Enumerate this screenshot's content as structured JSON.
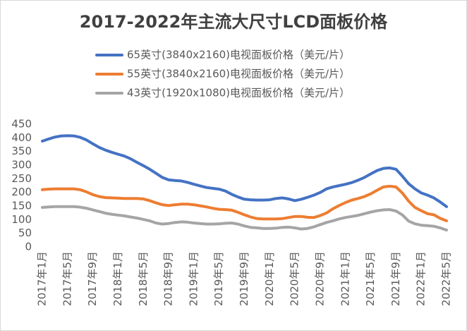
{
  "chart_data": {
    "type": "line",
    "title": "2017-2022年主流大尺寸LCD面板价格",
    "categories": [
      "2017年1月",
      null,
      null,
      null,
      "2017年5月",
      null,
      null,
      null,
      "2017年9月",
      null,
      null,
      null,
      "2018年1月",
      null,
      null,
      null,
      "2018年5月",
      null,
      null,
      null,
      "2018年9月",
      null,
      null,
      null,
      "2019年1月",
      null,
      null,
      null,
      "2019年5月",
      null,
      null,
      null,
      "2019年9月",
      null,
      null,
      null,
      "2020年1月",
      null,
      null,
      null,
      "2020年5月",
      null,
      null,
      null,
      "2020年9月",
      null,
      null,
      null,
      "2021年1月",
      null,
      null,
      null,
      "2021年5月",
      null,
      null,
      null,
      "2021年9月",
      null,
      null,
      null,
      "2022年1月",
      null,
      null,
      null,
      "2022年5月"
    ],
    "series": [
      {
        "name": "65英寸(3840x2160)电视面板价格（美元/片）",
        "color": "#4472c4",
        "values": [
          388,
          396,
          403,
          407,
          408,
          407,
          402,
          392,
          378,
          365,
          355,
          347,
          340,
          333,
          323,
          310,
          298,
          285,
          270,
          255,
          246,
          244,
          242,
          237,
          230,
          224,
          218,
          215,
          212,
          205,
          193,
          183,
          175,
          173,
          172,
          172,
          173,
          178,
          180,
          176,
          170,
          175,
          182,
          190,
          200,
          213,
          220,
          225,
          230,
          236,
          245,
          255,
          268,
          280,
          288,
          290,
          285,
          260,
          232,
          213,
          198,
          190,
          180,
          165,
          148
        ]
      },
      {
        "name": "55英寸(3840x2160)电视面板价格（美元/片）",
        "color": "#ed7d31",
        "values": [
          210,
          212,
          213,
          213,
          213,
          213,
          210,
          202,
          192,
          185,
          181,
          180,
          179,
          178,
          178,
          178,
          176,
          170,
          162,
          155,
          152,
          155,
          157,
          157,
          155,
          151,
          147,
          142,
          138,
          137,
          135,
          127,
          118,
          110,
          104,
          103,
          103,
          103,
          104,
          108,
          112,
          112,
          109,
          108,
          115,
          125,
          140,
          152,
          163,
          172,
          178,
          185,
          195,
          208,
          220,
          223,
          220,
          198,
          168,
          145,
          133,
          122,
          118,
          105,
          96
        ]
      },
      {
        "name": "43英寸(1920x1080)电视面板价格（美元/片）",
        "color": "#a5a5a5",
        "values": [
          145,
          147,
          148,
          148,
          148,
          148,
          146,
          142,
          136,
          130,
          124,
          120,
          117,
          114,
          110,
          106,
          101,
          96,
          88,
          84,
          86,
          90,
          92,
          91,
          88,
          86,
          84,
          84,
          85,
          87,
          88,
          84,
          77,
          72,
          70,
          68,
          68,
          69,
          72,
          73,
          70,
          66,
          68,
          74,
          82,
          90,
          96,
          103,
          108,
          112,
          116,
          122,
          128,
          133,
          136,
          137,
          132,
          118,
          95,
          85,
          80,
          78,
          76,
          70,
          62
        ]
      }
    ],
    "ylim": [
      0,
      450
    ],
    "yticks": [
      0,
      50,
      100,
      150,
      200,
      250,
      300,
      350,
      400,
      450
    ],
    "grid": false,
    "legend": "top"
  }
}
